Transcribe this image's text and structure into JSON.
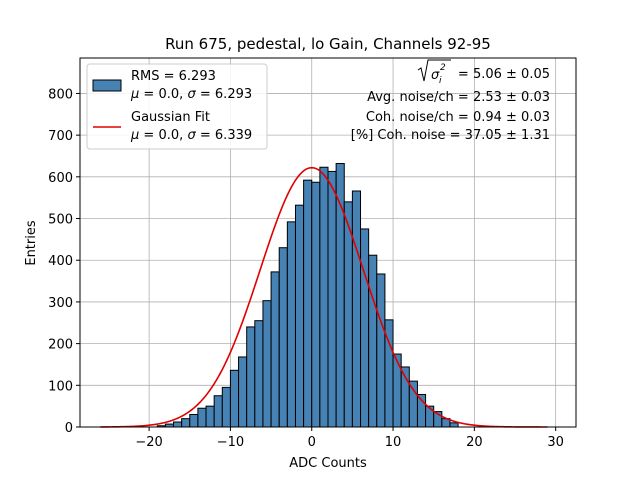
{
  "chart_data": {
    "type": "bar",
    "title": "Run 675, pedestal, lo Gain, Channels 92-95",
    "xlabel": "ADC Counts",
    "ylabel": "Entries",
    "xlim": [
      -28.5,
      32.5
    ],
    "ylim": [
      0,
      885
    ],
    "xticks": [
      -20,
      -10,
      0,
      10,
      20,
      30
    ],
    "yticks": [
      0,
      100,
      200,
      300,
      400,
      500,
      600,
      700,
      800
    ],
    "grid": true,
    "bar_color": "#4682b4",
    "bar_edge_color": "#000000",
    "fit_color": "#e00000",
    "bin_width": 1,
    "histogram": {
      "bin_left_edges": [
        -19,
        -18,
        -17,
        -16,
        -15,
        -14,
        -13,
        -12,
        -11,
        -10,
        -9,
        -8,
        -7,
        -6,
        -5,
        -4,
        -3,
        -2,
        -1,
        0,
        1,
        2,
        3,
        4,
        5,
        6,
        7,
        8,
        9,
        10,
        11,
        12,
        13,
        14,
        15,
        16,
        17
      ],
      "counts": [
        3,
        7,
        12,
        20,
        30,
        45,
        50,
        75,
        95,
        136,
        168,
        240,
        255,
        303,
        372,
        430,
        492,
        532,
        592,
        587,
        623,
        613,
        632,
        540,
        566,
        475,
        412,
        367,
        257,
        175,
        144,
        110,
        78,
        50,
        37,
        20,
        10
      ]
    },
    "gaussian_fit": {
      "mu": 0.0,
      "sigma": 6.339,
      "amplitude": 622,
      "x_range": [
        -26,
        29
      ]
    },
    "legend": {
      "position": "top-left",
      "entries": [
        {
          "label_line1": "RMS = 6.293",
          "label_line2": "μ = 0.0, σ = 6.293"
        },
        {
          "label_line1": "Gaussian Fit",
          "label_line2": "μ = 0.0, σ = 6.339"
        }
      ]
    },
    "annotations": {
      "sigma_sq_value": " = 5.06 ± 0.05",
      "avg_noise": "Avg. noise/ch = 2.53 ± 0.03",
      "coh_noise": "Coh. noise/ch = 0.94 ± 0.03",
      "pct_coh_noise": "[%] Coh. noise = 37.05 ± 1.31"
    }
  }
}
